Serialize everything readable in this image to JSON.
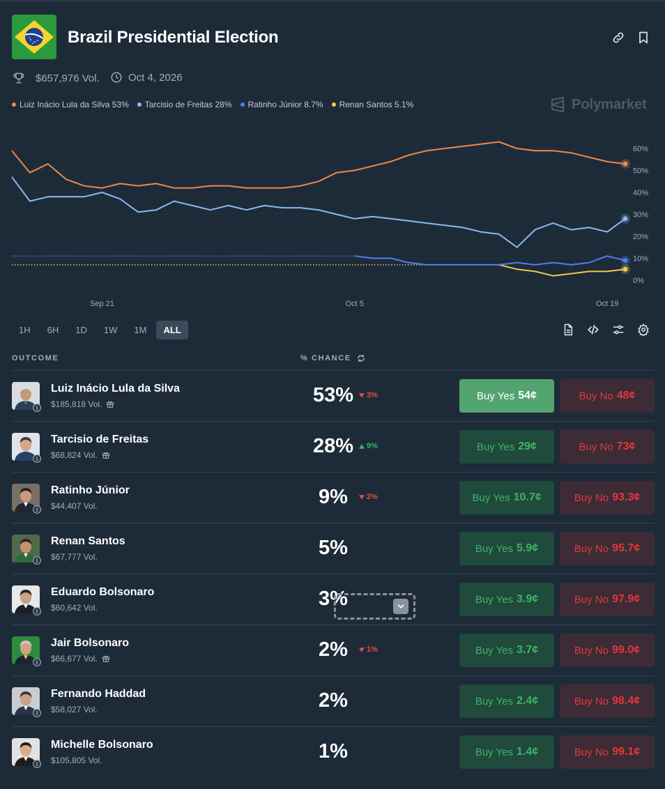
{
  "header": {
    "title": "Brazil Presidential Election",
    "volume": "$657,976 Vol.",
    "date": "Oct 4, 2026",
    "watermark": "Polymarket"
  },
  "legend": [
    {
      "label": "Luiz Inácio Lula da Silva 53%",
      "color": "#f0874b"
    },
    {
      "label": "Tarcisio de Freitas 28%",
      "color": "#8bb8f5"
    },
    {
      "label": "Ratinho Júnior 8.7%",
      "color": "#4f7ef0"
    },
    {
      "label": "Renan Santos 5.1%",
      "color": "#f2c94c"
    }
  ],
  "chart_data": {
    "type": "line",
    "x_ticks": [
      "Sep 21",
      "Oct 5",
      "Oct 19"
    ],
    "y_ticks": [
      "60%",
      "50%",
      "40%",
      "30%",
      "20%",
      "10%",
      "0%"
    ],
    "ylim": [
      0,
      60
    ],
    "xlim": [
      "Sep 16",
      "Oct 20"
    ],
    "grid": true,
    "series": [
      {
        "name": "Luiz Inácio Lula da Silva",
        "color": "#f0874b",
        "x": [
          "Sep 16",
          "Sep 17",
          "Sep 18",
          "Sep 19",
          "Sep 20",
          "Sep 21",
          "Sep 22",
          "Sep 23",
          "Sep 24",
          "Sep 25",
          "Sep 26",
          "Sep 27",
          "Sep 28",
          "Sep 29",
          "Sep 30",
          "Oct 1",
          "Oct 2",
          "Oct 3",
          "Oct 4",
          "Oct 5",
          "Oct 6",
          "Oct 7",
          "Oct 8",
          "Oct 9",
          "Oct 10",
          "Oct 11",
          "Oct 12",
          "Oct 13",
          "Oct 14",
          "Oct 15",
          "Oct 16",
          "Oct 17",
          "Oct 18",
          "Oct 19",
          "Oct 20"
        ],
        "values": [
          59,
          49,
          53,
          46,
          43,
          42,
          44,
          43,
          44,
          42,
          42,
          43,
          43,
          42,
          42,
          42,
          43,
          45,
          49,
          50,
          52,
          54,
          57,
          59,
          60,
          61,
          62,
          63,
          60,
          59,
          59,
          58,
          56,
          54,
          53
        ]
      },
      {
        "name": "Tarcisio de Freitas",
        "color": "#8bb8f5",
        "x": [
          "Sep 16",
          "Sep 17",
          "Sep 18",
          "Sep 19",
          "Sep 20",
          "Sep 21",
          "Sep 22",
          "Sep 23",
          "Sep 24",
          "Sep 25",
          "Sep 26",
          "Sep 27",
          "Sep 28",
          "Sep 29",
          "Sep 30",
          "Oct 1",
          "Oct 2",
          "Oct 3",
          "Oct 4",
          "Oct 5",
          "Oct 6",
          "Oct 7",
          "Oct 8",
          "Oct 9",
          "Oct 10",
          "Oct 11",
          "Oct 12",
          "Oct 13",
          "Oct 14",
          "Oct 15",
          "Oct 16",
          "Oct 17",
          "Oct 18",
          "Oct 19",
          "Oct 20"
        ],
        "values": [
          47,
          36,
          38,
          38,
          38,
          40,
          37,
          31,
          32,
          36,
          34,
          32,
          34,
          32,
          34,
          33,
          33,
          32,
          30,
          28,
          29,
          28,
          27,
          26,
          25,
          24,
          22,
          21,
          15,
          23,
          26,
          23,
          24,
          22,
          28
        ]
      },
      {
        "name": "Ratinho Júnior",
        "color": "#4f7ef0",
        "x": [
          "Sep 16",
          "Oct 5",
          "Oct 6",
          "Oct 7",
          "Oct 8",
          "Oct 9",
          "Oct 10",
          "Oct 11",
          "Oct 12",
          "Oct 13",
          "Oct 14",
          "Oct 15",
          "Oct 16",
          "Oct 17",
          "Oct 18",
          "Oct 19",
          "Oct 20"
        ],
        "values": [
          11,
          11,
          10,
          10,
          8,
          7,
          7,
          7,
          7,
          7,
          8,
          7,
          8,
          7,
          8,
          11,
          9
        ]
      },
      {
        "name": "Renan Santos",
        "color": "#f2c94c",
        "x": [
          "Sep 16",
          "Oct 13",
          "Oct 14",
          "Oct 15",
          "Oct 16",
          "Oct 17",
          "Oct 18",
          "Oct 19",
          "Oct 20"
        ],
        "values": [
          7,
          7,
          5,
          4,
          2,
          3,
          4,
          4,
          5
        ]
      }
    ]
  },
  "ranges": [
    "1H",
    "6H",
    "1D",
    "1W",
    "1M",
    "ALL"
  ],
  "active_range": "ALL",
  "columns": {
    "outcome": "OUTCOME",
    "chance": "% CHANCE"
  },
  "outcomes": [
    {
      "name": "Luiz Inácio Lula da Silva",
      "vol": "$185,818 Vol.",
      "gift": true,
      "pct": "53%",
      "delta": "3%",
      "dir": "down",
      "yes_label": "Buy Yes",
      "yes": "54¢",
      "no_label": "Buy No",
      "no": "48¢",
      "highlight": true
    },
    {
      "name": "Tarcisio de Freitas",
      "vol": "$68,824 Vol.",
      "gift": true,
      "pct": "28%",
      "delta": "9%",
      "dir": "up",
      "yes_label": "Buy Yes",
      "yes": "29¢",
      "no_label": "Buy No",
      "no": "73¢"
    },
    {
      "name": "Ratinho Júnior",
      "vol": "$44,407 Vol.",
      "gift": false,
      "pct": "9%",
      "delta": "2%",
      "dir": "down",
      "yes_label": "Buy Yes",
      "yes": "10.7¢",
      "no_label": "Buy No",
      "no": "93.3¢"
    },
    {
      "name": "Renan Santos",
      "vol": "$67,777 Vol.",
      "gift": false,
      "pct": "5%",
      "delta": "",
      "dir": "",
      "yes_label": "Buy Yes",
      "yes": "5.9¢",
      "no_label": "Buy No",
      "no": "95.7¢"
    },
    {
      "name": "Eduardo Bolsonaro",
      "vol": "$60,642 Vol.",
      "gift": false,
      "pct": "3%",
      "delta": "",
      "dir": "",
      "yes_label": "Buy Yes",
      "yes": "3.9¢",
      "no_label": "Buy No",
      "no": "97.9¢"
    },
    {
      "name": "Jair Bolsonaro",
      "vol": "$66,677 Vol.",
      "gift": true,
      "pct": "2%",
      "delta": "1%",
      "dir": "down",
      "yes_label": "Buy Yes",
      "yes": "3.7¢",
      "no_label": "Buy No",
      "no": "99.0¢"
    },
    {
      "name": "Fernando Haddad",
      "vol": "$58,027 Vol.",
      "gift": false,
      "pct": "2%",
      "delta": "",
      "dir": "",
      "yes_label": "Buy Yes",
      "yes": "2.4¢",
      "no_label": "Buy No",
      "no": "98.4¢"
    },
    {
      "name": "Michelle Bolsonaro",
      "vol": "$105,805 Vol.",
      "gift": false,
      "pct": "1%",
      "delta": "",
      "dir": "",
      "yes_label": "Buy Yes",
      "yes": "1.4¢",
      "no_label": "Buy No",
      "no": "99.1¢"
    }
  ],
  "colors": {
    "background": "#1d2b39",
    "yes": "#3db468",
    "no": "#e23939"
  }
}
